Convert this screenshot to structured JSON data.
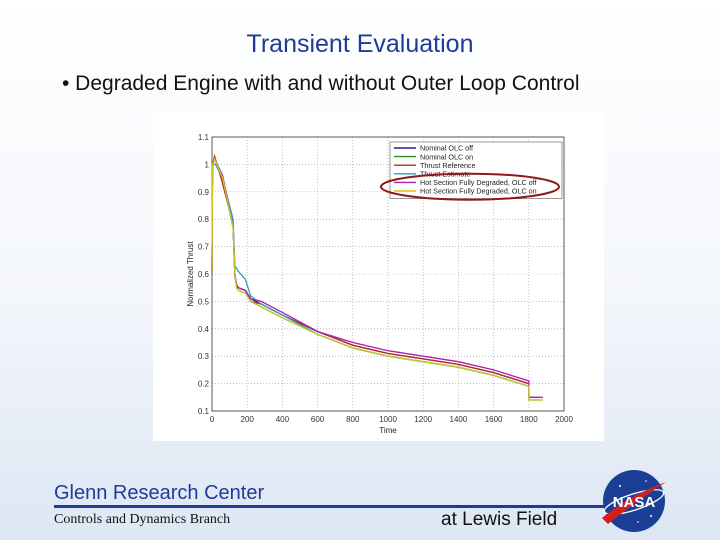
{
  "slide": {
    "title": "Transient Evaluation",
    "bullet": "• Degraded Engine with and without Outer Loop Control"
  },
  "footer": {
    "center": "Glenn Research Center",
    "branch": "Controls and Dynamics Branch",
    "location": "at Lewis Field",
    "logo_text": "NASA"
  },
  "colors": {
    "title": "#1f3b9a",
    "highlight_ellipse": "#8b1a1a",
    "logo_blue": "#1b3f95",
    "logo_red": "#d21f1f"
  },
  "chart_data": {
    "type": "line",
    "title": "",
    "xlabel": "Time",
    "ylabel": "Normalized Thrust",
    "xlim": [
      0,
      2000
    ],
    "ylim": [
      0.1,
      1.1
    ],
    "xticks": [
      "0",
      "200",
      "400",
      "600",
      "800",
      "1000",
      "1200",
      "1400",
      "1600",
      "1800",
      "2000"
    ],
    "yticks": [
      "0.1",
      "0.2",
      "0.3",
      "0.4",
      "0.5",
      "0.6",
      "0.7",
      "0.8",
      "0.9",
      "1",
      "1.1"
    ],
    "grid": true,
    "legend_position": "top-right",
    "highlight": "ellipse around legend entries 5-6",
    "series": [
      {
        "name": "Nominal OLC off",
        "color": "#1f1fa8",
        "x": [
          0,
          3,
          15,
          60,
          120,
          130,
          140,
          150,
          190,
          220,
          280,
          400,
          600,
          800,
          1000,
          1200,
          1400,
          1600,
          1800
        ],
        "y": [
          0.6,
          1.0,
          1.02,
          0.95,
          0.77,
          0.6,
          0.56,
          0.55,
          0.54,
          0.51,
          0.49,
          0.45,
          0.39,
          0.34,
          0.31,
          0.29,
          0.27,
          0.24,
          0.2
        ]
      },
      {
        "name": "Nominal OLC on",
        "color": "#2e8b2e",
        "x": [
          0,
          3,
          15,
          60,
          120,
          130,
          140,
          150,
          190,
          220,
          280,
          400,
          600,
          800,
          1000,
          1200,
          1400,
          1600,
          1800,
          1801,
          1880
        ],
        "y": [
          0.6,
          1.0,
          1.02,
          0.95,
          0.77,
          0.6,
          0.55,
          0.54,
          0.53,
          0.5,
          0.48,
          0.44,
          0.38,
          0.33,
          0.3,
          0.28,
          0.26,
          0.23,
          0.19,
          0.14,
          0.14
        ]
      },
      {
        "name": "Thrust Reference",
        "color": "#c0271f",
        "x": [
          0,
          3,
          15,
          60,
          120,
          130,
          140,
          150,
          190,
          220,
          280,
          400,
          600,
          800,
          1000,
          1200,
          1400,
          1600,
          1800
        ],
        "y": [
          0.6,
          1.0,
          1.03,
          0.93,
          0.78,
          0.6,
          0.56,
          0.55,
          0.54,
          0.5,
          0.49,
          0.45,
          0.39,
          0.34,
          0.31,
          0.29,
          0.27,
          0.24,
          0.2
        ]
      },
      {
        "name": "Thrust Estimate",
        "color": "#26a6b8",
        "x": [
          0,
          3,
          20,
          60,
          100,
          120,
          130,
          140,
          150,
          190,
          220,
          280,
          400,
          600,
          800,
          1000,
          1200,
          1400,
          1600,
          1800
        ],
        "y": [
          0.6,
          1.0,
          1.0,
          0.95,
          0.85,
          0.8,
          0.63,
          0.62,
          0.61,
          0.58,
          0.52,
          0.49,
          0.45,
          0.38,
          0.33,
          0.3,
          0.28,
          0.26,
          0.23,
          0.19
        ]
      },
      {
        "name": "Hot Section Fully Degraded, OLC off",
        "color": "#b01fb0",
        "x": [
          0,
          3,
          15,
          60,
          120,
          130,
          140,
          150,
          190,
          220,
          280,
          400,
          600,
          800,
          1000,
          1200,
          1400,
          1600,
          1800,
          1801,
          1880
        ],
        "y": [
          0.6,
          1.0,
          1.02,
          0.96,
          0.77,
          0.59,
          0.56,
          0.55,
          0.54,
          0.51,
          0.5,
          0.46,
          0.39,
          0.35,
          0.32,
          0.3,
          0.28,
          0.25,
          0.21,
          0.15,
          0.15
        ]
      },
      {
        "name": "Hot Section Fully Degraded, OLC on",
        "color": "#c8c81e",
        "x": [
          0,
          3,
          15,
          60,
          120,
          130,
          140,
          150,
          190,
          220,
          280,
          400,
          600,
          800,
          1000,
          1200,
          1400,
          1600,
          1800,
          1801,
          1880
        ],
        "y": [
          0.6,
          1.0,
          1.02,
          0.95,
          0.77,
          0.6,
          0.55,
          0.54,
          0.53,
          0.5,
          0.48,
          0.44,
          0.38,
          0.33,
          0.3,
          0.28,
          0.26,
          0.23,
          0.19,
          0.14,
          0.14
        ]
      }
    ]
  }
}
